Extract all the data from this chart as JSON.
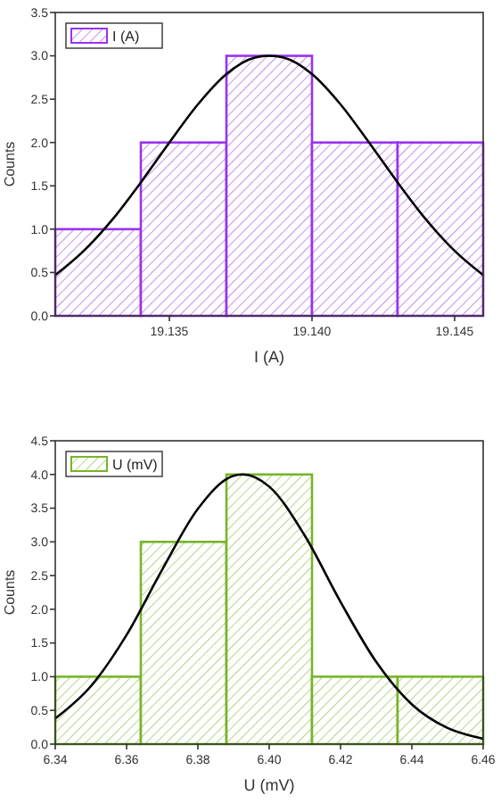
{
  "chart_data": [
    {
      "type": "histogram",
      "xlabel": "I (A)",
      "ylabel": "Counts",
      "legend": "top left",
      "grid": false,
      "xlim": [
        19.131,
        19.146
      ],
      "xticks": [
        19.135,
        {
          "value": 19.14,
          "label": "19.140"
        },
        19.145
      ],
      "ylim": [
        0,
        3.5
      ],
      "yticks": [
        {
          "value": 0,
          "label": "0.0"
        },
        0.5,
        {
          "value": 1,
          "label": "1.0"
        },
        1.5,
        {
          "value": 2,
          "label": "2.0"
        },
        2.5,
        {
          "value": 3,
          "label": "3.0"
        },
        3.5
      ],
      "series": [
        {
          "name": "I (A)",
          "color": "#9933ee",
          "bins": [
            19.131,
            19.134,
            19.137,
            19.14,
            19.143,
            19.146
          ],
          "values": [
            1,
            2,
            3,
            2,
            2
          ]
        },
        {
          "type": "line",
          "color": "#000000",
          "x": [
            19.131,
            19.132,
            19.133,
            19.134,
            19.135,
            19.136,
            19.137,
            19.138,
            19.1385,
            19.139,
            19.14,
            19.141,
            19.142,
            19.143,
            19.144,
            19.145,
            19.146
          ],
          "values": [
            0.47,
            0.75,
            1.11,
            1.54,
            2.0,
            2.44,
            2.79,
            2.98,
            3.0,
            2.98,
            2.79,
            2.44,
            2.0,
            1.54,
            1.11,
            0.75,
            0.47
          ]
        }
      ]
    },
    {
      "type": "histogram",
      "xlabel": "U (mV)",
      "ylabel": "Counts",
      "legend": "top left",
      "grid": false,
      "xlim": [
        6.34,
        6.46
      ],
      "xticks": [
        6.34,
        6.36,
        6.38,
        {
          "value": 6.4,
          "label": "6.40"
        },
        6.42,
        6.44,
        6.46
      ],
      "ylim": [
        0,
        4.5
      ],
      "yticks": [
        {
          "value": 0,
          "label": "0.0"
        },
        0.5,
        {
          "value": 1,
          "label": "1.0"
        },
        1.5,
        {
          "value": 2,
          "label": "2.0"
        },
        2.5,
        {
          "value": 3,
          "label": "3.0"
        },
        3.5,
        {
          "value": 4,
          "label": "4.0"
        },
        4.5
      ],
      "series": [
        {
          "name": "U (mV)",
          "color": "#77b52a",
          "bins": [
            6.34,
            6.364,
            6.388,
            6.412,
            6.436,
            6.46
          ],
          "values": [
            1,
            3,
            4,
            1,
            1
          ]
        },
        {
          "type": "line",
          "color": "#000000",
          "x": [
            6.34,
            6.35,
            6.36,
            6.37,
            6.38,
            6.39,
            6.3926,
            6.4,
            6.41,
            6.42,
            6.43,
            6.44,
            6.45,
            6.46
          ],
          "values": [
            0.38,
            0.86,
            1.62,
            2.59,
            3.49,
            3.98,
            4.0,
            3.82,
            3.09,
            2.11,
            1.22,
            0.59,
            0.24,
            0.08
          ]
        }
      ]
    }
  ]
}
